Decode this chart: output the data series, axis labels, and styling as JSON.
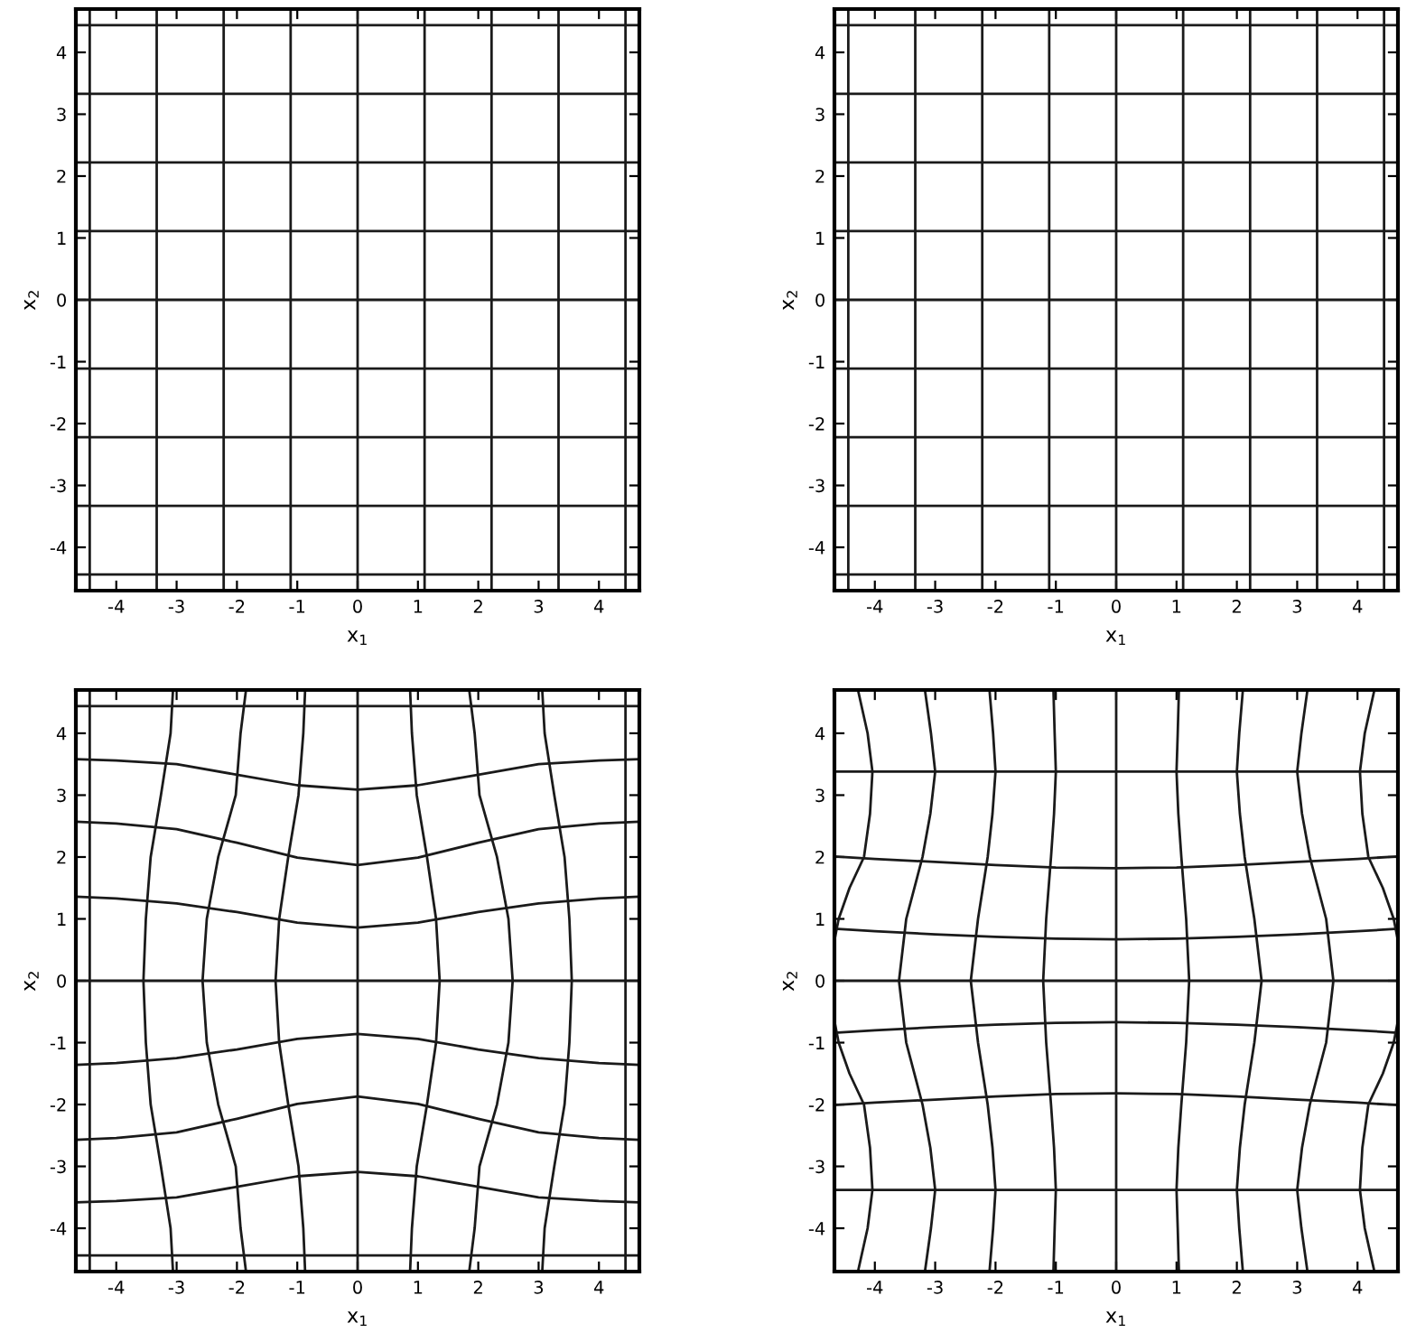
{
  "chart_data": [
    {
      "type": "line",
      "xlabel": "x$_{1}$",
      "ylabel": "x$_{2}$",
      "xlim": [
        -4.67,
        4.67
      ],
      "ylim": [
        -4.7,
        4.7
      ],
      "xticks": [
        -4,
        -3,
        -2,
        -1,
        0,
        1,
        2,
        3,
        4
      ],
      "yticks": [
        -4,
        -3,
        -2,
        -1,
        0,
        1,
        2,
        3,
        4
      ],
      "series": [
        {
          "color": "#1a1a1a",
          "x": [
            -4.67,
            4.67
          ],
          "values": [
            -4.44,
            -4.44
          ]
        },
        {
          "color": "#1a1a1a",
          "x": [
            -4.67,
            4.67
          ],
          "values": [
            -3.33,
            -3.33
          ]
        },
        {
          "color": "#1a1a1a",
          "x": [
            -4.67,
            4.67
          ],
          "values": [
            -2.22,
            -2.22
          ]
        },
        {
          "color": "#1a1a1a",
          "x": [
            -4.67,
            4.67
          ],
          "values": [
            -1.11,
            -1.11
          ]
        },
        {
          "color": "#1a1a1a",
          "x": [
            -4.67,
            4.67
          ],
          "values": [
            0,
            0
          ]
        },
        {
          "color": "#1a1a1a",
          "x": [
            -4.67,
            4.67
          ],
          "values": [
            1.11,
            1.11
          ]
        },
        {
          "color": "#1a1a1a",
          "x": [
            -4.67,
            4.67
          ],
          "values": [
            2.22,
            2.22
          ]
        },
        {
          "color": "#1a1a1a",
          "x": [
            -4.67,
            4.67
          ],
          "values": [
            3.33,
            3.33
          ]
        },
        {
          "color": "#1a1a1a",
          "x": [
            -4.67,
            4.67
          ],
          "values": [
            4.44,
            4.44
          ]
        },
        {
          "color": "#1a1a1a",
          "x": [
            -4.44,
            -4.44
          ],
          "values": [
            -4.7,
            4.7
          ]
        },
        {
          "color": "#1a1a1a",
          "x": [
            -3.33,
            -3.33
          ],
          "values": [
            -4.7,
            4.7
          ]
        },
        {
          "color": "#1a1a1a",
          "x": [
            -2.22,
            -2.22
          ],
          "values": [
            -4.7,
            4.7
          ]
        },
        {
          "color": "#1a1a1a",
          "x": [
            -1.11,
            -1.11
          ],
          "values": [
            -4.7,
            4.7
          ]
        },
        {
          "color": "#1a1a1a",
          "x": [
            0,
            0
          ],
          "values": [
            -4.7,
            4.7
          ]
        },
        {
          "color": "#1a1a1a",
          "x": [
            1.11,
            1.11
          ],
          "values": [
            -4.7,
            4.7
          ]
        },
        {
          "color": "#1a1a1a",
          "x": [
            2.22,
            2.22
          ],
          "values": [
            -4.7,
            4.7
          ]
        },
        {
          "color": "#1a1a1a",
          "x": [
            3.33,
            3.33
          ],
          "values": [
            -4.7,
            4.7
          ]
        },
        {
          "color": "#1a1a1a",
          "x": [
            4.44,
            4.44
          ],
          "values": [
            -4.7,
            4.7
          ]
        }
      ]
    },
    {
      "type": "line",
      "xlabel": "x$_{1}$",
      "ylabel": "x$_{2}$",
      "xlim": [
        -4.67,
        4.67
      ],
      "ylim": [
        -4.7,
        4.7
      ],
      "xticks": [
        -4,
        -3,
        -2,
        -1,
        0,
        1,
        2,
        3,
        4
      ],
      "yticks": [
        -4,
        -3,
        -2,
        -1,
        0,
        1,
        2,
        3,
        4
      ],
      "series": [
        {
          "color": "#1a1a1a",
          "x": [
            -4.67,
            4.67
          ],
          "values": [
            -4.44,
            -4.44
          ]
        },
        {
          "color": "#1a1a1a",
          "x": [
            -4.67,
            4.67
          ],
          "values": [
            -3.33,
            -3.33
          ]
        },
        {
          "color": "#1a1a1a",
          "x": [
            -4.67,
            4.67
          ],
          "values": [
            -2.22,
            -2.22
          ]
        },
        {
          "color": "#1a1a1a",
          "x": [
            -4.67,
            4.67
          ],
          "values": [
            -1.11,
            -1.11
          ]
        },
        {
          "color": "#1a1a1a",
          "x": [
            -4.67,
            4.67
          ],
          "values": [
            0,
            0
          ]
        },
        {
          "color": "#1a1a1a",
          "x": [
            -4.67,
            4.67
          ],
          "values": [
            1.11,
            1.11
          ]
        },
        {
          "color": "#1a1a1a",
          "x": [
            -4.67,
            4.67
          ],
          "values": [
            2.22,
            2.22
          ]
        },
        {
          "color": "#1a1a1a",
          "x": [
            -4.67,
            4.67
          ],
          "values": [
            3.33,
            3.33
          ]
        },
        {
          "color": "#1a1a1a",
          "x": [
            -4.67,
            4.67
          ],
          "values": [
            4.44,
            4.44
          ]
        },
        {
          "color": "#1a1a1a",
          "x": [
            -4.44,
            -4.44
          ],
          "values": [
            -4.7,
            4.7
          ]
        },
        {
          "color": "#1a1a1a",
          "x": [
            -3.33,
            -3.33
          ],
          "values": [
            -4.7,
            4.7
          ]
        },
        {
          "color": "#1a1a1a",
          "x": [
            -2.22,
            -2.22
          ],
          "values": [
            -4.7,
            4.7
          ]
        },
        {
          "color": "#1a1a1a",
          "x": [
            -1.11,
            -1.11
          ],
          "values": [
            -4.7,
            4.7
          ]
        },
        {
          "color": "#1a1a1a",
          "x": [
            0,
            0
          ],
          "values": [
            -4.7,
            4.7
          ]
        },
        {
          "color": "#1a1a1a",
          "x": [
            1.11,
            1.11
          ],
          "values": [
            -4.7,
            4.7
          ]
        },
        {
          "color": "#1a1a1a",
          "x": [
            2.22,
            2.22
          ],
          "values": [
            -4.7,
            4.7
          ]
        },
        {
          "color": "#1a1a1a",
          "x": [
            3.33,
            3.33
          ],
          "values": [
            -4.7,
            4.7
          ]
        },
        {
          "color": "#1a1a1a",
          "x": [
            4.44,
            4.44
          ],
          "values": [
            -4.7,
            4.7
          ]
        }
      ]
    },
    {
      "type": "line",
      "xlabel": "x$_{1}$",
      "ylabel": "x$_{2}$",
      "xlim": [
        -4.67,
        4.67
      ],
      "ylim": [
        -4.7,
        4.7
      ],
      "xticks": [
        -4,
        -3,
        -2,
        -1,
        0,
        1,
        2,
        3,
        4
      ],
      "yticks": [
        -4,
        -3,
        -2,
        -1,
        0,
        1,
        2,
        3,
        4
      ],
      "series": [
        {
          "color": "#1a1a1a",
          "x": [
            -4.67,
            4.67
          ],
          "values": [
            -4.44,
            -4.44
          ]
        },
        {
          "color": "#1a1a1a",
          "x": [
            -4.67,
            -4,
            -3,
            -2,
            -1,
            0,
            1,
            2,
            3,
            4,
            4.67
          ],
          "values": [
            -3.58,
            -3.56,
            -3.5,
            -3.33,
            -3.16,
            -3.09,
            -3.16,
            -3.33,
            -3.5,
            -3.56,
            -3.58
          ]
        },
        {
          "color": "#1a1a1a",
          "x": [
            -4.67,
            -4,
            -3,
            -2,
            -1,
            0,
            1,
            2,
            3,
            4,
            4.67
          ],
          "values": [
            -2.57,
            -2.54,
            -2.45,
            -2.23,
            -1.99,
            -1.87,
            -1.99,
            -2.23,
            -2.45,
            -2.54,
            -2.57
          ]
        },
        {
          "color": "#1a1a1a",
          "x": [
            -4.67,
            -4,
            -3,
            -2,
            -1,
            0,
            1,
            2,
            3,
            4,
            4.67
          ],
          "values": [
            -1.36,
            -1.33,
            -1.25,
            -1.11,
            -0.94,
            -0.86,
            -0.94,
            -1.11,
            -1.25,
            -1.33,
            -1.36
          ]
        },
        {
          "color": "#1a1a1a",
          "x": [
            -4.67,
            4.67
          ],
          "values": [
            0,
            0
          ]
        },
        {
          "color": "#1a1a1a",
          "x": [
            -4.67,
            -4,
            -3,
            -2,
            -1,
            0,
            1,
            2,
            3,
            4,
            4.67
          ],
          "values": [
            1.36,
            1.33,
            1.25,
            1.11,
            0.94,
            0.86,
            0.94,
            1.11,
            1.25,
            1.33,
            1.36
          ]
        },
        {
          "color": "#1a1a1a",
          "x": [
            -4.67,
            -4,
            -3,
            -2,
            -1,
            0,
            1,
            2,
            3,
            4,
            4.67
          ],
          "values": [
            2.57,
            2.54,
            2.45,
            2.23,
            1.99,
            1.87,
            1.99,
            2.23,
            2.45,
            2.54,
            2.57
          ]
        },
        {
          "color": "#1a1a1a",
          "x": [
            -4.67,
            -4,
            -3,
            -2,
            -1,
            0,
            1,
            2,
            3,
            4,
            4.67
          ],
          "values": [
            3.58,
            3.56,
            3.5,
            3.33,
            3.16,
            3.09,
            3.16,
            3.33,
            3.5,
            3.56,
            3.58
          ]
        },
        {
          "color": "#1a1a1a",
          "x": [
            -4.67,
            4.67
          ],
          "values": [
            4.44,
            4.44
          ]
        },
        {
          "color": "#1a1a1a",
          "x": [
            -4.44,
            -4.44
          ],
          "values": [
            -4.7,
            4.7
          ]
        },
        {
          "color": "#1a1a1a",
          "x": [
            -3.06,
            -3.1,
            -3.26,
            -3.43,
            -3.51,
            -3.55,
            -3.51,
            -3.43,
            -3.26,
            -3.1,
            -3.06
          ],
          "values": [
            -4.7,
            -4,
            -3,
            -2,
            -1,
            0,
            1,
            2,
            3,
            4,
            4.7
          ]
        },
        {
          "color": "#1a1a1a",
          "x": [
            -1.85,
            -1.94,
            -2.02,
            -2.31,
            -2.5,
            -2.57,
            -2.5,
            -2.31,
            -2.02,
            -1.94,
            -1.85
          ],
          "values": [
            -4.7,
            -4,
            -3,
            -2,
            -1,
            0,
            1,
            2,
            3,
            4,
            4.7
          ]
        },
        {
          "color": "#1a1a1a",
          "x": [
            -0.87,
            -0.9,
            -0.98,
            -1.15,
            -1.3,
            -1.36,
            -1.3,
            -1.15,
            -0.98,
            -0.9,
            -0.87
          ],
          "values": [
            -4.7,
            -4,
            -3,
            -2,
            -1,
            0,
            1,
            2,
            3,
            4,
            4.7
          ]
        },
        {
          "color": "#1a1a1a",
          "x": [
            0,
            0
          ],
          "values": [
            -4.7,
            4.7
          ]
        },
        {
          "color": "#1a1a1a",
          "x": [
            0.87,
            0.9,
            0.98,
            1.15,
            1.3,
            1.36,
            1.3,
            1.15,
            0.98,
            0.9,
            0.87
          ],
          "values": [
            -4.7,
            -4,
            -3,
            -2,
            -1,
            0,
            1,
            2,
            3,
            4,
            4.7
          ]
        },
        {
          "color": "#1a1a1a",
          "x": [
            1.85,
            1.94,
            2.02,
            2.31,
            2.5,
            2.57,
            2.5,
            2.31,
            2.02,
            1.94,
            1.85
          ],
          "values": [
            -4.7,
            -4,
            -3,
            -2,
            -1,
            0,
            1,
            2,
            3,
            4,
            4.7
          ]
        },
        {
          "color": "#1a1a1a",
          "x": [
            3.06,
            3.1,
            3.26,
            3.43,
            3.51,
            3.55,
            3.51,
            3.43,
            3.26,
            3.1,
            3.06
          ],
          "values": [
            -4.7,
            -4,
            -3,
            -2,
            -1,
            0,
            1,
            2,
            3,
            4,
            4.7
          ]
        },
        {
          "color": "#1a1a1a",
          "x": [
            4.44,
            4.44
          ],
          "values": [
            -4.7,
            4.7
          ]
        }
      ]
    },
    {
      "type": "line",
      "xlabel": "x$_{1}$",
      "ylabel": "x$_{2}$",
      "xlim": [
        -4.67,
        4.67
      ],
      "ylim": [
        -4.7,
        4.7
      ],
      "xticks": [
        -4,
        -3,
        -2,
        -1,
        0,
        1,
        2,
        3,
        4
      ],
      "yticks": [
        -4,
        -3,
        -2,
        -1,
        0,
        1,
        2,
        3,
        4
      ],
      "series": [
        {
          "color": "#1a1a1a",
          "x": [
            -4.67,
            4.67
          ],
          "values": [
            -3.38,
            -3.38
          ]
        },
        {
          "color": "#1a1a1a",
          "x": [
            -4.67,
            -4,
            -3,
            -2,
            -1,
            0,
            1,
            2,
            3,
            4,
            4.67
          ],
          "values": [
            -2.01,
            -1.97,
            -1.92,
            -1.87,
            -1.83,
            -1.82,
            -1.83,
            -1.87,
            -1.92,
            -1.97,
            -2.01
          ]
        },
        {
          "color": "#1a1a1a",
          "x": [
            -4.67,
            -4,
            -3,
            -2,
            -1,
            0,
            1,
            2,
            3,
            4,
            4.67
          ],
          "values": [
            -0.84,
            -0.8,
            -0.75,
            -0.71,
            -0.68,
            -0.67,
            -0.68,
            -0.71,
            -0.75,
            -0.8,
            -0.84
          ]
        },
        {
          "color": "#1a1a1a",
          "x": [
            -4.67,
            4.67
          ],
          "values": [
            0,
            0
          ]
        },
        {
          "color": "#1a1a1a",
          "x": [
            -4.67,
            -4,
            -3,
            -2,
            -1,
            0,
            1,
            2,
            3,
            4,
            4.67
          ],
          "values": [
            0.84,
            0.8,
            0.75,
            0.71,
            0.68,
            0.67,
            0.68,
            0.71,
            0.75,
            0.8,
            0.84
          ]
        },
        {
          "color": "#1a1a1a",
          "x": [
            -4.67,
            -4,
            -3,
            -2,
            -1,
            0,
            1,
            2,
            3,
            4,
            4.67
          ],
          "values": [
            2.01,
            1.97,
            1.92,
            1.87,
            1.83,
            1.82,
            1.83,
            1.87,
            1.92,
            1.97,
            2.01
          ]
        },
        {
          "color": "#1a1a1a",
          "x": [
            -4.67,
            4.67
          ],
          "values": [
            3.38,
            3.38
          ]
        },
        {
          "color": "#1a1a1a",
          "x": [
            -4.67,
            -4.6,
            -4.42,
            -4.18,
            -4.08,
            -4.04,
            -4.12,
            -4.28
          ],
          "values": [
            0.65,
            1,
            1.5,
            2,
            2.7,
            3.38,
            4,
            4.7
          ]
        },
        {
          "color": "#1a1a1a",
          "x": [
            -4.67,
            -4.6,
            -4.42,
            -4.18,
            -4.08,
            -4.04,
            -4.12,
            -4.28
          ],
          "values": [
            -0.65,
            -1,
            -1.5,
            -2,
            -2.7,
            -3.38,
            -4,
            -4.7
          ]
        },
        {
          "color": "#1a1a1a",
          "x": [
            -3.17,
            -3.07,
            -3.0,
            -3.08,
            -3.21,
            -3.48,
            -3.6,
            -3.48,
            -3.21,
            -3.08,
            -3.0,
            -3.07,
            -3.17
          ],
          "values": [
            -4.7,
            -4,
            -3.38,
            -2.7,
            -2,
            -1,
            0,
            1,
            2,
            2.7,
            3.38,
            4,
            4.7
          ]
        },
        {
          "color": "#1a1a1a",
          "x": [
            -2.1,
            -2.04,
            -2.0,
            -2.05,
            -2.13,
            -2.29,
            -2.41,
            -2.29,
            -2.13,
            -2.05,
            -2.0,
            -2.04,
            -2.1
          ],
          "values": [
            -4.7,
            -4,
            -3.38,
            -2.7,
            -2,
            -1,
            0,
            1,
            2,
            2.7,
            3.38,
            4,
            4.7
          ]
        },
        {
          "color": "#1a1a1a",
          "x": [
            -1.04,
            -1.02,
            -1.0,
            -1.03,
            -1.08,
            -1.16,
            -1.21,
            -1.16,
            -1.08,
            -1.03,
            -1.0,
            -1.02,
            -1.04
          ],
          "values": [
            -4.7,
            -4,
            -3.38,
            -2.7,
            -2,
            -1,
            0,
            1,
            2,
            2.7,
            3.38,
            4,
            4.7
          ]
        },
        {
          "color": "#1a1a1a",
          "x": [
            0,
            0
          ],
          "values": [
            -4.7,
            4.7
          ]
        },
        {
          "color": "#1a1a1a",
          "x": [
            1.04,
            1.02,
            1.0,
            1.03,
            1.08,
            1.16,
            1.21,
            1.16,
            1.08,
            1.03,
            1.0,
            1.02,
            1.04
          ],
          "values": [
            -4.7,
            -4,
            -3.38,
            -2.7,
            -2,
            -1,
            0,
            1,
            2,
            2.7,
            3.38,
            4,
            4.7
          ]
        },
        {
          "color": "#1a1a1a",
          "x": [
            2.1,
            2.04,
            2.0,
            2.05,
            2.13,
            2.29,
            2.41,
            2.29,
            2.13,
            2.05,
            2.0,
            2.04,
            2.1
          ],
          "values": [
            -4.7,
            -4,
            -3.38,
            -2.7,
            -2,
            -1,
            0,
            1,
            2,
            2.7,
            3.38,
            4,
            4.7
          ]
        },
        {
          "color": "#1a1a1a",
          "x": [
            3.17,
            3.07,
            3.0,
            3.08,
            3.21,
            3.48,
            3.6,
            3.48,
            3.21,
            3.08,
            3.0,
            3.07,
            3.17
          ],
          "values": [
            -4.7,
            -4,
            -3.38,
            -2.7,
            -2,
            -1,
            0,
            1,
            2,
            2.7,
            3.38,
            4,
            4.7
          ]
        },
        {
          "color": "#1a1a1a",
          "x": [
            4.67,
            4.6,
            4.42,
            4.18,
            4.08,
            4.04,
            4.12,
            4.28
          ],
          "values": [
            0.65,
            1,
            1.5,
            2,
            2.7,
            3.38,
            4,
            4.7
          ]
        },
        {
          "color": "#1a1a1a",
          "x": [
            4.67,
            4.6,
            4.42,
            4.18,
            4.08,
            4.04,
            4.12,
            4.28
          ],
          "values": [
            -0.65,
            -1,
            -1.5,
            -2,
            -2.7,
            -3.38,
            -4,
            -4.7
          ]
        }
      ]
    }
  ]
}
